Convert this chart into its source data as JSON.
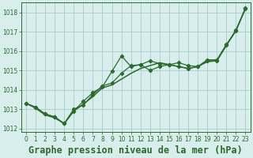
{
  "title": "Graphe pression niveau de la mer (hPa)",
  "background_color": "#d8eeed",
  "grid_color": "#aacccc",
  "line_color": "#2d6a2d",
  "xlim": [
    -0.5,
    23.5
  ],
  "ylim": [
    1011.8,
    1018.5
  ],
  "yticks": [
    1012,
    1013,
    1014,
    1015,
    1016,
    1017,
    1018
  ],
  "xticks": [
    0,
    1,
    2,
    3,
    4,
    5,
    6,
    7,
    8,
    9,
    10,
    11,
    12,
    13,
    14,
    15,
    16,
    17,
    18,
    19,
    20,
    21,
    22,
    23
  ],
  "series1": [
    1013.3,
    1013.1,
    1012.75,
    1012.6,
    1012.25,
    1012.9,
    1013.4,
    1013.85,
    1014.15,
    1014.95,
    1015.75,
    1015.2,
    1015.3,
    1015.5,
    1015.35,
    1015.3,
    1015.4,
    1015.25,
    1015.2,
    1015.55,
    1015.55,
    1016.35,
    1017.05,
    1018.25
  ],
  "series2": [
    1013.3,
    1013.1,
    1012.75,
    1012.6,
    1012.25,
    1013.0,
    1013.2,
    1013.75,
    1014.2,
    1014.35,
    1014.85,
    1015.25,
    1015.3,
    1015.0,
    1015.2,
    1015.3,
    1015.2,
    1015.1,
    1015.2,
    1015.5,
    1015.5,
    1016.3,
    1017.1,
    1018.2
  ],
  "series3": [
    1013.3,
    1013.05,
    1012.7,
    1012.55,
    1012.25,
    1012.9,
    1013.25,
    1013.65,
    1014.1,
    1014.25,
    1014.55,
    1014.85,
    1015.1,
    1015.25,
    1015.4,
    1015.3,
    1015.2,
    1015.1,
    1015.2,
    1015.45,
    1015.5,
    1016.3,
    1017.05,
    1018.2
  ],
  "tick_fontsize": 5.5,
  "title_fontsize": 8.5,
  "marker_size": 2.2,
  "linewidth": 0.9
}
